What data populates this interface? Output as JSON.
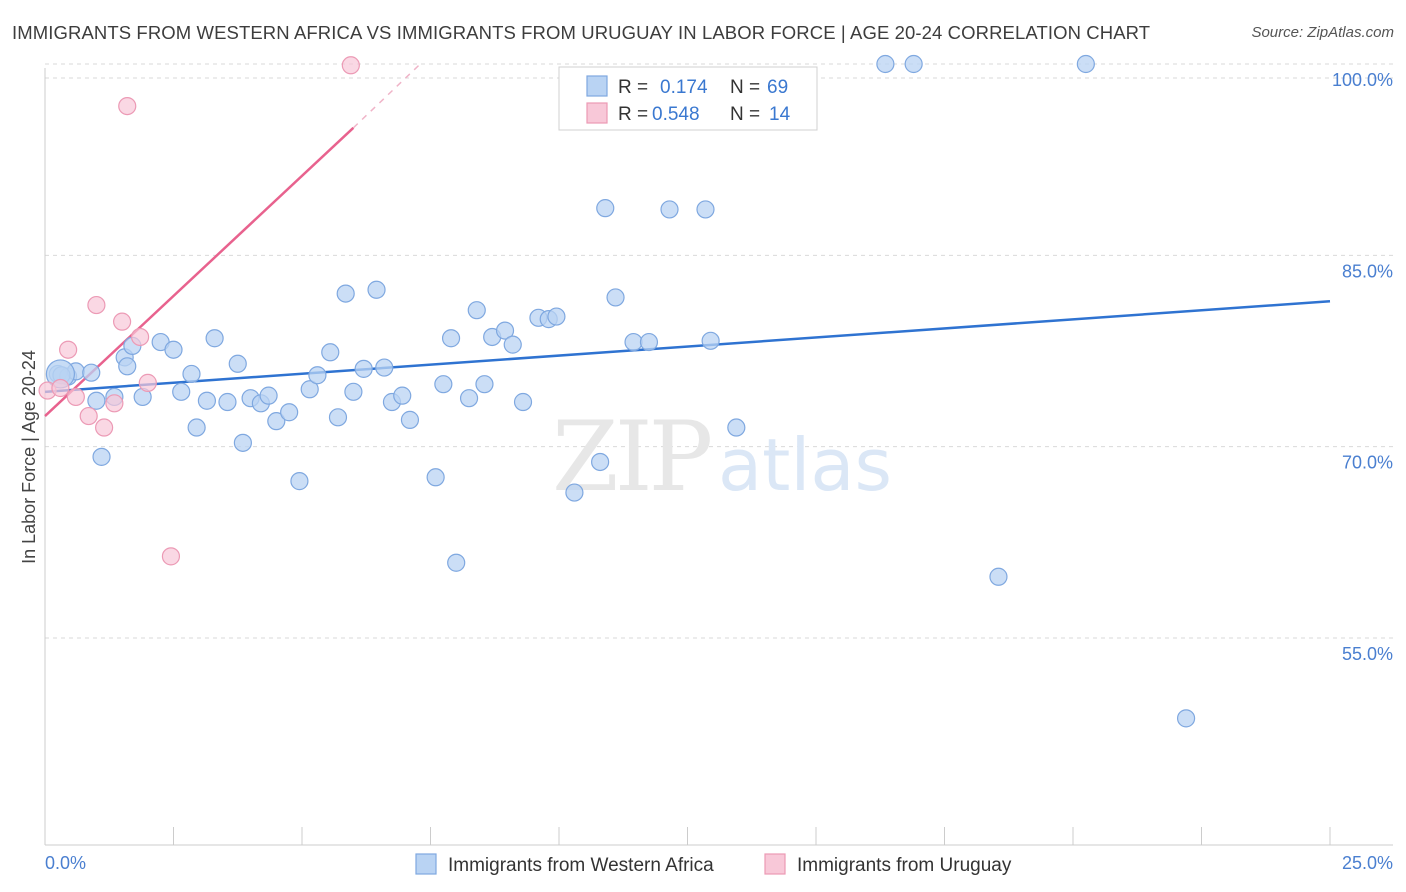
{
  "title": "IMMIGRANTS FROM WESTERN AFRICA VS IMMIGRANTS FROM URUGUAY IN LABOR FORCE | AGE 20-24 CORRELATION CHART",
  "source": "Source: ZipAtlas.com",
  "watermark": {
    "part1": "ZIP",
    "part2": "atlas"
  },
  "colors": {
    "blue_fill": "#b9d3f3",
    "blue_stroke": "#7fa8e0",
    "blue_line": "#2f73d1",
    "pink_fill": "#f8c8d8",
    "pink_stroke": "#ec9ab5",
    "pink_line": "#e8628e",
    "grid": "#d9d9d9",
    "axis_label": "#4a7fd0"
  },
  "chart_data": {
    "type": "scatter",
    "xlabel": "",
    "ylabel": "In Labor Force | Age 20-24",
    "xlim": [
      0,
      25
    ],
    "ylim": [
      43,
      101.5
    ],
    "x_tick_labels": [
      "0.0%",
      "25.0%"
    ],
    "y_ticks": [
      55,
      70,
      85,
      100
    ],
    "y_tick_labels": [
      "55.0%",
      "70.0%",
      "85.0%",
      "100.0%"
    ],
    "legend": [
      {
        "r_label": "R =",
        "r": "0.174",
        "n_label": "N =",
        "n": "69"
      },
      {
        "r_label": "R =",
        "r": "0.548",
        "n_label": "N =",
        "n": "14"
      }
    ],
    "series": [
      {
        "name": "Immigrants from Western Africa",
        "trend": {
          "x": [
            0,
            25
          ],
          "y": [
            74.3,
            81.4
          ]
        },
        "points": [
          [
            0.25,
            75.7
          ],
          [
            0.45,
            75.5
          ],
          [
            0.6,
            75.9
          ],
          [
            0.9,
            75.8
          ],
          [
            1.0,
            73.6
          ],
          [
            1.1,
            69.2
          ],
          [
            1.35,
            73.9
          ],
          [
            1.55,
            77.0
          ],
          [
            1.7,
            77.9
          ],
          [
            1.9,
            73.9
          ],
          [
            2.25,
            78.2
          ],
          [
            2.5,
            77.6
          ],
          [
            2.65,
            74.3
          ],
          [
            2.85,
            75.7
          ],
          [
            2.95,
            71.5
          ],
          [
            3.15,
            73.6
          ],
          [
            3.3,
            78.5
          ],
          [
            3.55,
            73.5
          ],
          [
            3.75,
            76.5
          ],
          [
            3.85,
            70.3
          ],
          [
            4.0,
            73.8
          ],
          [
            4.2,
            73.4
          ],
          [
            4.35,
            74.0
          ],
          [
            4.5,
            72.0
          ],
          [
            4.75,
            72.7
          ],
          [
            4.95,
            67.3
          ],
          [
            5.15,
            74.5
          ],
          [
            5.3,
            75.6
          ],
          [
            5.55,
            77.4
          ],
          [
            5.7,
            72.3
          ],
          [
            5.85,
            82.0
          ],
          [
            6.0,
            74.3
          ],
          [
            6.2,
            76.1
          ],
          [
            6.45,
            82.3
          ],
          [
            6.6,
            76.2
          ],
          [
            6.75,
            73.5
          ],
          [
            6.95,
            74.0
          ],
          [
            7.1,
            72.1
          ],
          [
            7.6,
            67.6
          ],
          [
            7.75,
            74.9
          ],
          [
            7.9,
            78.5
          ],
          [
            8.0,
            60.9
          ],
          [
            8.25,
            73.8
          ],
          [
            8.4,
            80.7
          ],
          [
            8.55,
            74.9
          ],
          [
            8.7,
            78.6
          ],
          [
            8.95,
            79.1
          ],
          [
            9.1,
            78.0
          ],
          [
            9.3,
            73.5
          ],
          [
            9.6,
            80.1
          ],
          [
            9.8,
            80.0
          ],
          [
            9.95,
            80.2
          ],
          [
            10.3,
            66.4
          ],
          [
            10.8,
            68.8
          ],
          [
            10.9,
            88.7
          ],
          [
            11.1,
            81.7
          ],
          [
            11.45,
            78.2
          ],
          [
            11.75,
            78.2
          ],
          [
            12.15,
            88.6
          ],
          [
            12.85,
            88.6
          ],
          [
            12.95,
            78.3
          ],
          [
            13.45,
            71.5
          ],
          [
            16.35,
            100.0
          ],
          [
            16.9,
            100.0
          ],
          [
            18.55,
            59.8
          ],
          [
            20.25,
            100.0
          ],
          [
            22.2,
            48.7
          ],
          [
            0.32,
            75.6
          ],
          [
            1.6,
            76.3
          ]
        ],
        "big_point": [
          0.3,
          75.7
        ]
      },
      {
        "name": "Immigrants from Uruguay",
        "trend": {
          "x": [
            0,
            6.0
          ],
          "y": [
            72.4,
            95.0
          ]
        },
        "trend_dashed": {
          "x": [
            6.0,
            7.3
          ],
          "y": [
            95.0,
            100.0
          ]
        },
        "points": [
          [
            0.05,
            74.4
          ],
          [
            0.3,
            74.6
          ],
          [
            0.45,
            77.6
          ],
          [
            0.6,
            73.9
          ],
          [
            0.85,
            72.4
          ],
          [
            1.0,
            81.1
          ],
          [
            1.15,
            71.5
          ],
          [
            1.35,
            73.4
          ],
          [
            1.5,
            79.8
          ],
          [
            1.6,
            96.7
          ],
          [
            1.85,
            78.6
          ],
          [
            2.0,
            75.0
          ],
          [
            2.45,
            61.4
          ],
          [
            5.95,
            99.9
          ]
        ]
      }
    ]
  }
}
